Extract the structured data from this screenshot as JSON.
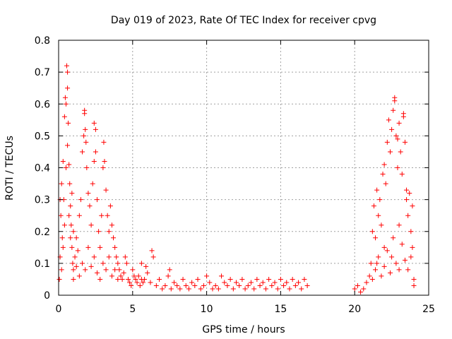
{
  "chart_data": {
    "type": "scatter",
    "title": "Day 019 of 2023, Rate Of TEC Index for receiver cpvg",
    "xlabel": "GPS time / hours",
    "ylabel": "ROTI / TECUs",
    "xlim": [
      0,
      25
    ],
    "ylim": [
      0,
      0.8
    ],
    "x_ticks": [
      "0",
      "5",
      "10",
      "15",
      "20",
      "25"
    ],
    "y_ticks": [
      "0",
      "0.1",
      "0.2",
      "0.3",
      "0.4",
      "0.5",
      "0.6",
      "0.7",
      "0.8"
    ],
    "grid": true,
    "marker": "+",
    "point_color": "#ff0000",
    "series": [
      {
        "points": [
          [
            0.05,
            0.05
          ],
          [
            0.1,
            0.12
          ],
          [
            0.15,
            0.25
          ],
          [
            0.2,
            0.35
          ],
          [
            0.25,
            0.18
          ],
          [
            0.3,
            0.42
          ],
          [
            0.35,
            0.3
          ],
          [
            0.4,
            0.56
          ],
          [
            0.45,
            0.62
          ],
          [
            0.5,
            0.6
          ],
          [
            0.55,
            0.72
          ],
          [
            0.6,
            0.7
          ],
          [
            0.65,
            0.54
          ],
          [
            0.7,
            0.41
          ],
          [
            0.75,
            0.35
          ],
          [
            0.8,
            0.28
          ],
          [
            0.85,
            0.22
          ],
          [
            0.9,
            0.15
          ],
          [
            0.95,
            0.1
          ],
          [
            1.0,
            0.08
          ],
          [
            0.1,
            0.3
          ],
          [
            0.2,
            0.08
          ],
          [
            0.3,
            0.15
          ],
          [
            0.4,
            0.22
          ],
          [
            0.5,
            0.4
          ],
          [
            0.6,
            0.47
          ],
          [
            0.7,
            0.25
          ],
          [
            0.8,
            0.18
          ],
          [
            0.9,
            0.32
          ],
          [
            1.0,
            0.2
          ],
          [
            1.1,
            0.12
          ],
          [
            1.2,
            0.09
          ],
          [
            1.3,
            0.14
          ],
          [
            1.4,
            0.25
          ],
          [
            1.5,
            0.3
          ],
          [
            1.6,
            0.45
          ],
          [
            1.7,
            0.5
          ],
          [
            1.75,
            0.58
          ],
          [
            1.8,
            0.52
          ],
          [
            1.85,
            0.48
          ],
          [
            1.9,
            0.4
          ],
          [
            2.0,
            0.32
          ],
          [
            2.1,
            0.28
          ],
          [
            2.2,
            0.22
          ],
          [
            2.3,
            0.35
          ],
          [
            2.4,
            0.42
          ],
          [
            2.5,
            0.45
          ],
          [
            2.6,
            0.3
          ],
          [
            2.7,
            0.2
          ],
          [
            2.8,
            0.15
          ],
          [
            2.9,
            0.25
          ],
          [
            3.0,
            0.4
          ],
          [
            3.05,
            0.48
          ],
          [
            3.1,
            0.42
          ],
          [
            3.2,
            0.33
          ],
          [
            3.3,
            0.25
          ],
          [
            3.4,
            0.2
          ],
          [
            3.5,
            0.28
          ],
          [
            3.6,
            0.22
          ],
          [
            3.7,
            0.18
          ],
          [
            3.8,
            0.15
          ],
          [
            3.9,
            0.12
          ],
          [
            4.0,
            0.1
          ],
          [
            4.1,
            0.08
          ],
          [
            4.2,
            0.06
          ],
          [
            4.3,
            0.05
          ],
          [
            4.4,
            0.07
          ],
          [
            4.5,
            0.12
          ],
          [
            4.6,
            0.1
          ],
          [
            4.7,
            0.05
          ],
          [
            4.8,
            0.04
          ],
          [
            4.9,
            0.03
          ],
          [
            5.0,
            0.08
          ],
          [
            5.1,
            0.06
          ],
          [
            5.2,
            0.05
          ],
          [
            5.3,
            0.04
          ],
          [
            5.4,
            0.06
          ],
          [
            5.5,
            0.03
          ],
          [
            5.6,
            0.05
          ],
          [
            5.7,
            0.04
          ],
          [
            1.0,
            0.05
          ],
          [
            1.2,
            0.18
          ],
          [
            1.4,
            0.06
          ],
          [
            1.6,
            0.1
          ],
          [
            1.8,
            0.08
          ],
          [
            2.0,
            0.15
          ],
          [
            2.2,
            0.09
          ],
          [
            2.4,
            0.12
          ],
          [
            2.6,
            0.07
          ],
          [
            2.8,
            0.05
          ],
          [
            3.0,
            0.1
          ],
          [
            3.2,
            0.08
          ],
          [
            3.4,
            0.12
          ],
          [
            3.6,
            0.06
          ],
          [
            3.8,
            0.08
          ],
          [
            4.0,
            0.05
          ],
          [
            2.5,
            0.52
          ],
          [
            2.4,
            0.54
          ],
          [
            0.6,
            0.65
          ],
          [
            1.75,
            0.57
          ],
          [
            5.8,
            0.05
          ],
          [
            6.0,
            0.07
          ],
          [
            6.2,
            0.04
          ],
          [
            6.4,
            0.12
          ],
          [
            6.6,
            0.03
          ],
          [
            6.8,
            0.05
          ],
          [
            7.0,
            0.02
          ],
          [
            7.2,
            0.03
          ],
          [
            7.4,
            0.06
          ],
          [
            7.6,
            0.02
          ],
          [
            7.8,
            0.04
          ],
          [
            8.0,
            0.03
          ],
          [
            8.2,
            0.02
          ],
          [
            8.4,
            0.05
          ],
          [
            8.6,
            0.03
          ],
          [
            8.8,
            0.02
          ],
          [
            9.0,
            0.04
          ],
          [
            9.2,
            0.03
          ],
          [
            9.4,
            0.05
          ],
          [
            9.6,
            0.02
          ],
          [
            9.8,
            0.03
          ],
          [
            10.0,
            0.06
          ],
          [
            10.2,
            0.04
          ],
          [
            10.4,
            0.02
          ],
          [
            10.6,
            0.03
          ],
          [
            10.8,
            0.02
          ],
          [
            11.0,
            0.06
          ],
          [
            11.2,
            0.04
          ],
          [
            11.4,
            0.03
          ],
          [
            11.6,
            0.05
          ],
          [
            11.8,
            0.02
          ],
          [
            12.0,
            0.04
          ],
          [
            12.2,
            0.03
          ],
          [
            12.4,
            0.05
          ],
          [
            12.6,
            0.02
          ],
          [
            12.8,
            0.03
          ],
          [
            13.0,
            0.04
          ],
          [
            13.2,
            0.02
          ],
          [
            13.4,
            0.05
          ],
          [
            13.6,
            0.03
          ],
          [
            13.8,
            0.04
          ],
          [
            14.0,
            0.02
          ],
          [
            14.2,
            0.05
          ],
          [
            14.4,
            0.03
          ],
          [
            14.6,
            0.04
          ],
          [
            14.8,
            0.02
          ],
          [
            15.0,
            0.05
          ],
          [
            15.2,
            0.03
          ],
          [
            15.4,
            0.04
          ],
          [
            15.6,
            0.02
          ],
          [
            15.8,
            0.05
          ],
          [
            16.0,
            0.03
          ],
          [
            16.2,
            0.04
          ],
          [
            16.4,
            0.02
          ],
          [
            16.6,
            0.05
          ],
          [
            16.8,
            0.03
          ],
          [
            6.3,
            0.14
          ],
          [
            5.9,
            0.09
          ],
          [
            7.5,
            0.08
          ],
          [
            5.6,
            0.1
          ],
          [
            20.0,
            0.02
          ],
          [
            20.2,
            0.03
          ],
          [
            20.4,
            0.01
          ],
          [
            20.6,
            0.02
          ],
          [
            20.8,
            0.04
          ],
          [
            21.0,
            0.06
          ],
          [
            21.1,
            0.1
          ],
          [
            21.2,
            0.2
          ],
          [
            21.3,
            0.28
          ],
          [
            21.4,
            0.18
          ],
          [
            21.5,
            0.33
          ],
          [
            21.6,
            0.25
          ],
          [
            21.7,
            0.3
          ],
          [
            21.8,
            0.22
          ],
          [
            21.9,
            0.38
          ],
          [
            22.0,
            0.41
          ],
          [
            22.1,
            0.35
          ],
          [
            22.2,
            0.48
          ],
          [
            22.3,
            0.55
          ],
          [
            22.4,
            0.45
          ],
          [
            22.5,
            0.52
          ],
          [
            22.6,
            0.58
          ],
          [
            22.7,
            0.62
          ],
          [
            22.8,
            0.5
          ],
          [
            22.9,
            0.4
          ],
          [
            23.0,
            0.54
          ],
          [
            23.1,
            0.45
          ],
          [
            23.2,
            0.38
          ],
          [
            23.3,
            0.56
          ],
          [
            23.4,
            0.48
          ],
          [
            23.5,
            0.3
          ],
          [
            23.6,
            0.25
          ],
          [
            23.7,
            0.32
          ],
          [
            23.8,
            0.2
          ],
          [
            23.9,
            0.15
          ],
          [
            24.0,
            0.05
          ],
          [
            21.5,
            0.1
          ],
          [
            22.0,
            0.15
          ],
          [
            22.5,
            0.12
          ],
          [
            23.0,
            0.08
          ],
          [
            21.2,
            0.05
          ],
          [
            21.4,
            0.08
          ],
          [
            21.6,
            0.12
          ],
          [
            21.8,
            0.06
          ],
          [
            22.0,
            0.09
          ],
          [
            22.2,
            0.14
          ],
          [
            22.4,
            0.07
          ],
          [
            22.6,
            0.18
          ],
          [
            22.8,
            0.1
          ],
          [
            23.0,
            0.22
          ],
          [
            23.2,
            0.16
          ],
          [
            23.4,
            0.11
          ],
          [
            23.6,
            0.08
          ],
          [
            23.8,
            0.12
          ],
          [
            24.0,
            0.03
          ],
          [
            23.3,
            0.57
          ],
          [
            22.7,
            0.61
          ],
          [
            22.9,
            0.49
          ],
          [
            23.5,
            0.33
          ],
          [
            23.9,
            0.28
          ]
        ]
      }
    ]
  }
}
